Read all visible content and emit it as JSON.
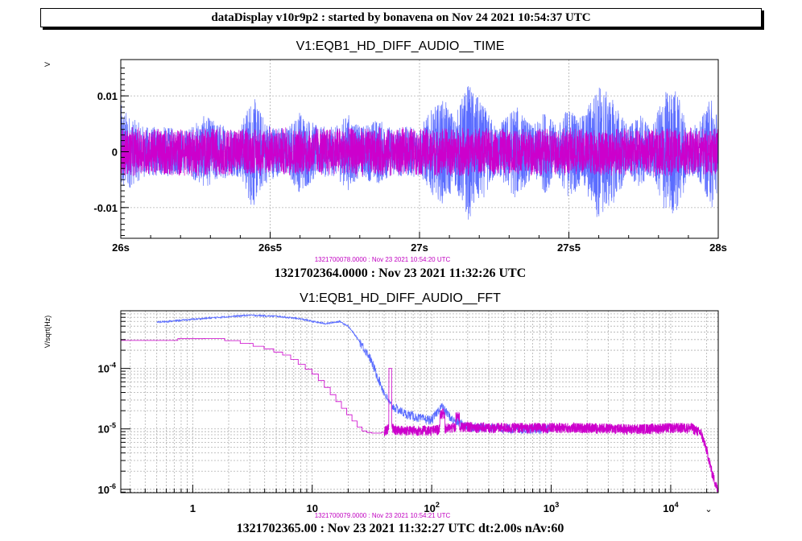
{
  "header": {
    "title": "dataDisplay v10r9p2 : started by bonavena on Nov 24 2021 10:54:37 UTC"
  },
  "colors": {
    "blue": "#5a6cff",
    "magenta": "#cc00cc"
  },
  "chart_data": [
    {
      "type": "line",
      "title": "V1:EQB1_HD_DIFF_AUDIO__TIME",
      "ylabel": "V",
      "xlim": [
        26,
        28
      ],
      "ylim": [
        -0.0155,
        0.0165
      ],
      "x_ticks": [
        26,
        26.5,
        27,
        27.5,
        28
      ],
      "x_tick_labels": [
        "26s",
        "26s5",
        "27s",
        "27s5",
        "28s"
      ],
      "y_ticks": [
        -0.01,
        0,
        0.01
      ],
      "y_tick_labels": [
        "-0.01",
        "0",
        "0.01"
      ],
      "grid": true,
      "stamp": "1321700078.0000 : Nov 23 2021 10:54:20 UTC",
      "timestamp": "1321702364.0000 : Nov 23 2021 11:32:26 UTC",
      "series": [
        {
          "color": "#5a6cff",
          "envelope_x": [
            26.0,
            26.04,
            26.08,
            26.14,
            26.22,
            26.28,
            26.32,
            26.36,
            26.4,
            26.44,
            26.48,
            26.52,
            26.56,
            26.6,
            26.66,
            26.72,
            26.76,
            26.8,
            26.86,
            26.9,
            26.96,
            27.0,
            27.04,
            27.08,
            27.12,
            27.16,
            27.2,
            27.26,
            27.32,
            27.38,
            27.42,
            27.46,
            27.5,
            27.54,
            27.6,
            27.66,
            27.7,
            27.74,
            27.78,
            27.82,
            27.86,
            27.9,
            27.94,
            27.98,
            28.0
          ],
          "envelope_amp": [
            0.0085,
            0.006,
            0.0045,
            0.0045,
            0.004,
            0.0065,
            0.0055,
            0.0045,
            0.0045,
            0.0105,
            0.006,
            0.0045,
            0.0045,
            0.0075,
            0.0045,
            0.0045,
            0.007,
            0.0045,
            0.006,
            0.0045,
            0.0045,
            0.0045,
            0.0075,
            0.0095,
            0.0065,
            0.0125,
            0.0095,
            0.0045,
            0.0085,
            0.0045,
            0.0075,
            0.0045,
            0.0085,
            0.006,
            0.0125,
            0.0085,
            0.0045,
            0.0065,
            0.0045,
            0.011,
            0.0115,
            0.0045,
            0.0055,
            0.0105,
            0.0065
          ]
        },
        {
          "color": "#cc00cc",
          "amplitude": 0.0045
        }
      ]
    },
    {
      "type": "line",
      "title": "V1:EQB1_HD_DIFF_AUDIO__FFT",
      "ylabel": "V/sqrt(Hz)",
      "xscale": "log",
      "yscale": "log",
      "xlim": [
        0.25,
        25000
      ],
      "ylim": [
        8.8e-07,
        0.0009
      ],
      "x_ticks": [
        1,
        10,
        100,
        1000,
        10000
      ],
      "x_tick_labels": [
        "1",
        "10",
        "10^2",
        "10^3",
        "10^4"
      ],
      "y_ticks": [
        1e-06,
        1e-05,
        0.0001
      ],
      "y_tick_labels": [
        "10^-6",
        "10^-5",
        "10^-4"
      ],
      "grid": true,
      "stamp": "1321700079.0000 : Nov 23 2021 10:54:21 UTC",
      "timestamp": "1321702365.00 : Nov 23 2021 11:32:27 UTC dt:2.00s nAv:60",
      "series": [
        {
          "color": "#5a6cff",
          "x": [
            0.5,
            1,
            2,
            3,
            5,
            8,
            10,
            13,
            17,
            20,
            25,
            30,
            40,
            45,
            50,
            60,
            80,
            100,
            120,
            150,
            200,
            300,
            500,
            1000
          ],
          "y": [
            0.00058,
            0.00065,
            0.00072,
            0.00076,
            0.00073,
            0.00066,
            0.0006,
            0.00055,
            0.0006,
            0.0005,
            0.00028,
            0.00016,
            4e-05,
            2.5e-05,
            2.2e-05,
            1.8e-05,
            1.5e-05,
            1.4e-05,
            2.4e-05,
            1.4e-05,
            1.1e-05,
            1.05e-05,
            1e-05,
            1e-05
          ]
        },
        {
          "color": "#cc00cc",
          "x": [
            0.25,
            0.5,
            0.9,
            1.5,
            2.5,
            4,
            6,
            8,
            10,
            12,
            15,
            20,
            25,
            30,
            35,
            40,
            45,
            50,
            60,
            80,
            100,
            150,
            200,
            300,
            500,
            1000,
            2000,
            5000,
            10000,
            15000,
            18000,
            20000,
            22000,
            25000
          ],
          "y": [
            0.00029,
            0.00029,
            0.00032,
            0.00031,
            0.00026,
            0.00021,
            0.00016,
            0.00011,
            8e-05,
            5.5e-05,
            3.2e-05,
            1.6e-05,
            9.5e-06,
            8.5e-06,
            8.5e-06,
            9e-06,
            1.1e-05,
            9.5e-06,
            9.5e-06,
            9.5e-06,
            9.5e-06,
            1.05e-05,
            1.1e-05,
            1.05e-05,
            1.05e-05,
            1.05e-05,
            1.05e-05,
            1e-05,
            1.05e-05,
            1.05e-05,
            8.5e-06,
            4.5e-06,
            2e-06,
            9e-07
          ]
        }
      ]
    }
  ]
}
